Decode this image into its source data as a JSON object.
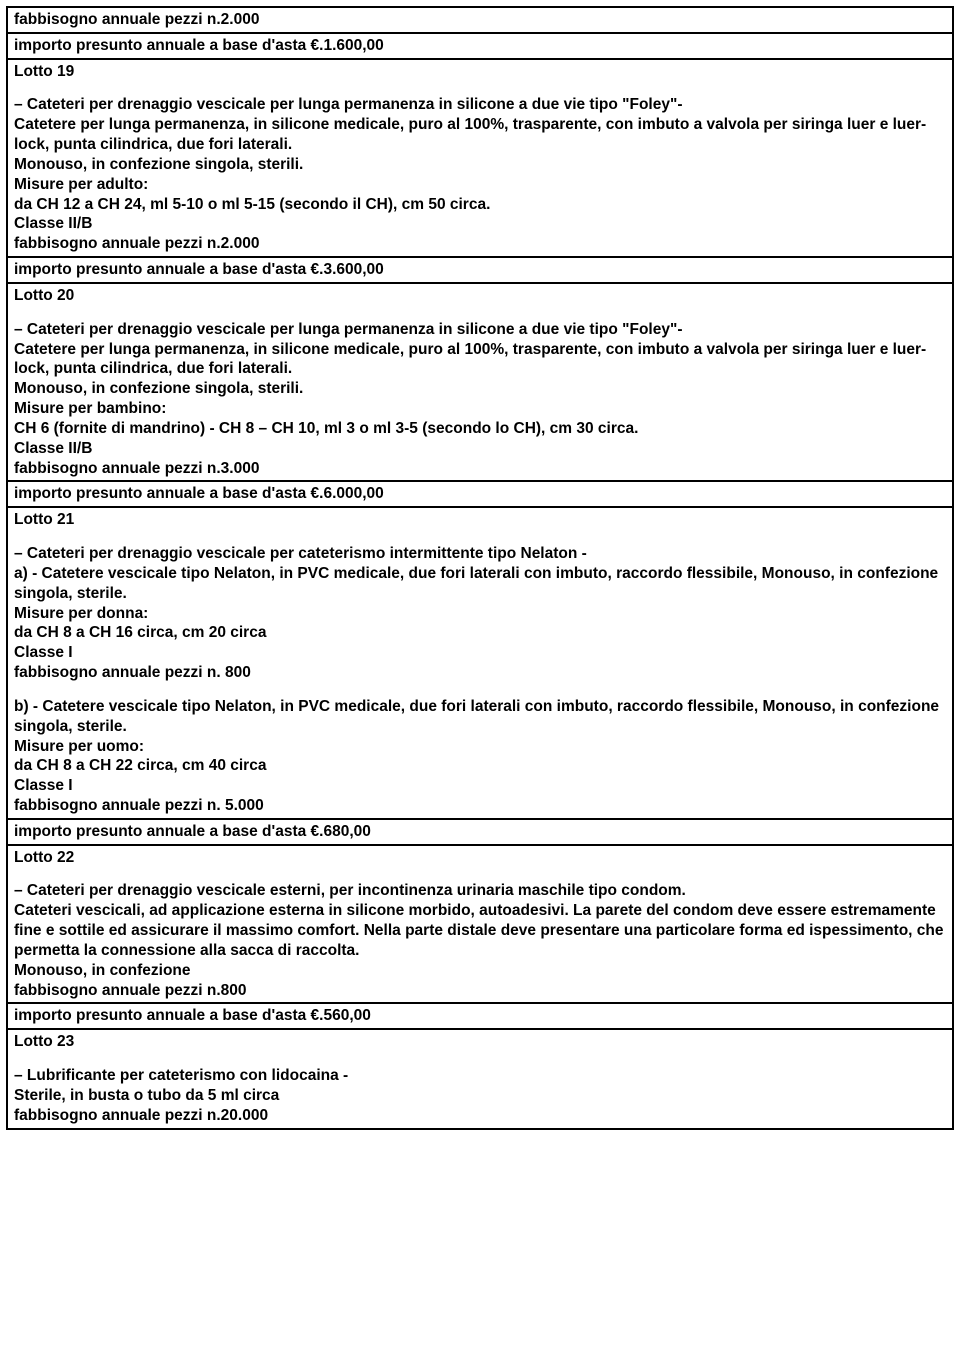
{
  "cells": [
    {
      "lines": [
        "fabbisogno annuale pezzi n.2.000"
      ]
    },
    {
      "lines": [
        "importo presunto annuale a base d'asta €.1.600,00"
      ]
    },
    {
      "lines": [
        "Lotto 19",
        "__SPACER__",
        "– Cateteri per drenaggio vescicale per lunga permanenza in silicone a due vie tipo \"Foley\"-",
        "Catetere per lunga permanenza, in silicone medicale, puro al 100%, trasparente, con imbuto a valvola per siringa luer e luer-lock, punta cilindrica, due fori laterali.",
        "Monouso, in confezione singola, sterili.",
        "Misure per adulto:",
        "da CH 12 a CH 24, ml 5-10 o ml 5-15 (secondo il CH), cm 50 circa.",
        "Classe II/B",
        "fabbisogno annuale pezzi n.2.000"
      ]
    },
    {
      "lines": [
        "importo presunto annuale a base d'asta €.3.600,00"
      ]
    },
    {
      "lines": [
        "Lotto 20",
        "__SPACER__",
        "– Cateteri per drenaggio vescicale per lunga permanenza in silicone a due vie tipo \"Foley\"-",
        "Catetere per lunga permanenza, in silicone medicale, puro al 100%, trasparente, con imbuto a valvola per siringa luer e luer-lock, punta cilindrica, due fori laterali.",
        "Monouso, in confezione singola, sterili.",
        "Misure per bambino:",
        "CH 6 (fornite di mandrino) - CH 8 – CH 10, ml 3 o ml 3-5 (secondo lo CH), cm 30 circa.",
        "Classe II/B",
        "fabbisogno annuale pezzi n.3.000"
      ]
    },
    {
      "lines": [
        "importo presunto annuale a base d'asta €.6.000,00"
      ]
    },
    {
      "lines": [
        "Lotto 21",
        "__SPACER__",
        "– Cateteri per drenaggio vescicale per cateterismo intermittente tipo Nelaton -",
        "a) - Catetere vescicale tipo Nelaton, in PVC medicale, due fori laterali con imbuto, raccordo flessibile, Monouso, in confezione singola, sterile.",
        "Misure per donna:",
        "da CH 8 a CH 16 circa, cm 20 circa",
        "Classe I",
        "fabbisogno annuale pezzi n. 800",
        "__SPACER__",
        "b) - Catetere vescicale tipo Nelaton, in PVC medicale, due fori laterali con imbuto, raccordo flessibile, Monouso, in confezione singola, sterile.",
        "Misure per uomo:",
        "da CH 8 a CH 22 circa, cm 40 circa",
        "Classe I",
        "fabbisogno annuale pezzi n. 5.000"
      ]
    },
    {
      "lines": [
        "importo presunto annuale a base d'asta €.680,00"
      ]
    },
    {
      "lines": [
        "Lotto 22",
        "__SPACER__",
        "– Cateteri per drenaggio vescicale esterni, per incontinenza urinaria maschile tipo condom.",
        "Cateteri vescicali, ad applicazione esterna in silicone morbido, autoadesivi. La parete del condom deve essere estremamente fine e sottile ed assicurare il massimo comfort. Nella parte distale deve presentare una particolare forma ed ispessimento, che permetta la connessione alla sacca di raccolta.",
        "Monouso, in confezione",
        "fabbisogno annuale pezzi n.800"
      ]
    },
    {
      "lines": [
        "importo presunto annuale a base d'asta €.560,00"
      ]
    },
    {
      "lines": [
        "Lotto 23",
        "__SPACER__",
        "– Lubrificante per cateterismo con lidocaina -",
        "Sterile, in busta o tubo da 5 ml circa",
        "fabbisogno annuale pezzi n.20.000"
      ]
    }
  ]
}
